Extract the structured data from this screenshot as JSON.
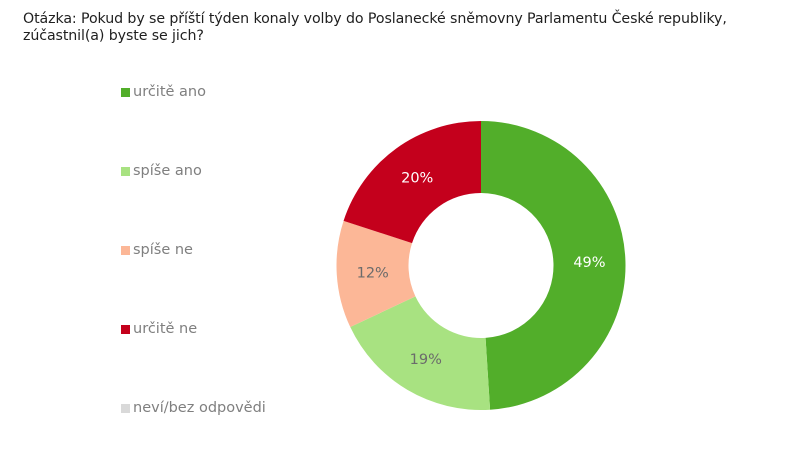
{
  "question": {
    "line1": "Otázka: Pokud by se příští týden konaly volby do Poslanecké sněmovny Parlamentu České republiky,",
    "line2": "zúčastnil(a) byste se jich?"
  },
  "legend": [
    {
      "label": "určitě ano",
      "color": "#52ae2a"
    },
    {
      "label": "spíše ano",
      "color": "#a8e281"
    },
    {
      "label": "spíše ne",
      "color": "#fcb797"
    },
    {
      "label": "určitě ne",
      "color": "#c4001c"
    },
    {
      "label": "neví/bez odpovědi",
      "color": "#d9d9d9"
    }
  ],
  "chart_data": {
    "type": "pie",
    "subtype": "donut",
    "title": "Otázka: Pokud by se příští týden konaly volby do Poslanecké sněmovny Parlamentu České republiky, zúčastnil(a) byste se jich?",
    "categories": [
      "určitě ano",
      "spíše ano",
      "spíše ne",
      "určitě ne",
      "neví/bez odpovědi"
    ],
    "values": [
      49,
      19,
      12,
      20,
      0
    ],
    "labels": [
      "49%",
      "19%",
      "12%",
      "20%",
      ""
    ],
    "colors": [
      "#52ae2a",
      "#a8e281",
      "#fcb797",
      "#c4001c",
      "#d9d9d9"
    ],
    "label_colors": [
      "#ffffff",
      "#6b6b6b",
      "#6b6b6b",
      "#ffffff",
      "#6b6b6b"
    ],
    "unit": "%",
    "start_angle": "12 o'clock, clockwise",
    "legend_position": "left"
  }
}
